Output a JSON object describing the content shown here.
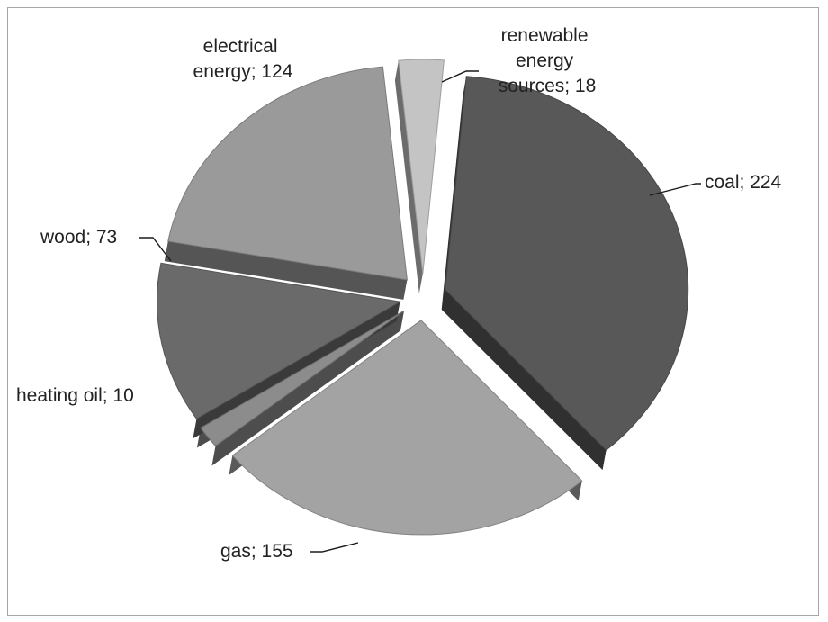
{
  "chart_data": {
    "type": "pie",
    "title": "",
    "three_d": true,
    "exploded": true,
    "series": [
      {
        "slices": [
          {
            "label": "coal",
            "value": 224,
            "label_text": "coal; 224",
            "color": "#585858"
          },
          {
            "label": "gas",
            "value": 155,
            "label_text": "gas; 155",
            "color": "#a3a3a3"
          },
          {
            "label": "heating oil",
            "value": 10,
            "label_text": "heating oil; 10",
            "color": "#8c8c8c"
          },
          {
            "label": "wood",
            "value": 73,
            "label_text": "wood; 73",
            "color": "#6a6a6a"
          },
          {
            "label": "electrical energy",
            "value": 124,
            "label_text_lines": [
              "electrical",
              "energy; 124"
            ],
            "color": "#9a9a9a"
          },
          {
            "label": "renewable energy sources",
            "value": 18,
            "label_text_lines": [
              "renewable",
              "energy",
              "sources; 18"
            ],
            "color": "#c4c4c4"
          }
        ]
      }
    ],
    "legend": "none",
    "data_labels": "outside"
  }
}
